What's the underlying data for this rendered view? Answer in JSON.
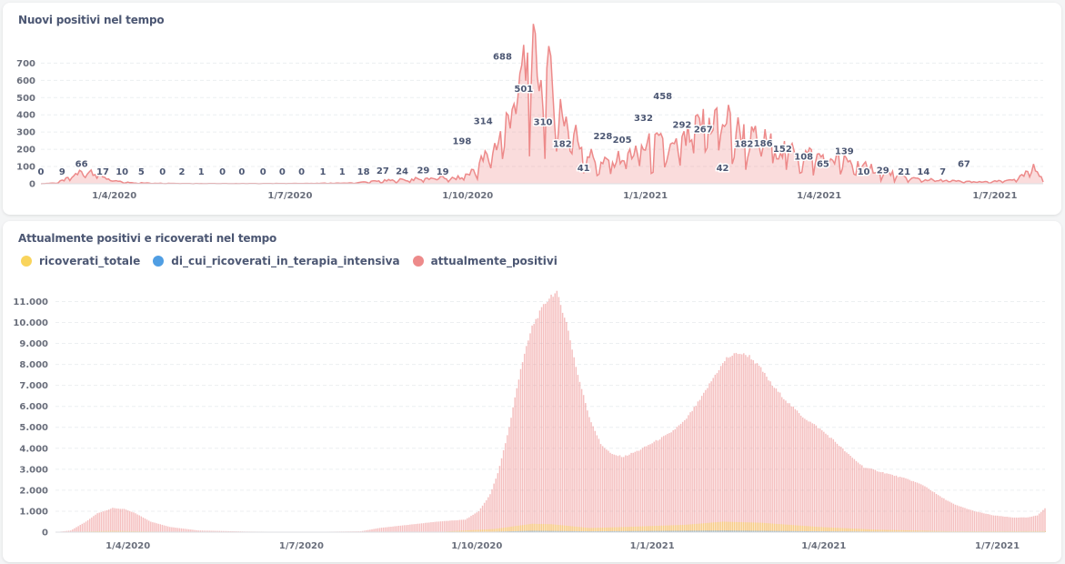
{
  "chart_data": [
    {
      "type": "area",
      "title": "Nuovi positivi nel tempo",
      "ylim": [
        0,
        760
      ],
      "yticks": [
        "0",
        "100",
        "200",
        "300",
        "400",
        "500",
        "600",
        "700"
      ],
      "ytick_values": [
        0,
        100,
        200,
        300,
        400,
        500,
        600,
        700
      ],
      "xtick_labels": [
        "1/4/2020",
        "1/7/2020",
        "1/10/2020",
        "1/1/2021",
        "1/4/2021",
        "1/7/2021"
      ],
      "xtick_days": [
        38,
        129,
        221,
        313,
        403,
        494
      ],
      "start": "2020-02-23",
      "n_days": 520,
      "color": "#ed8a8a",
      "anchors": [
        [
          0,
          0
        ],
        [
          8,
          5
        ],
        [
          14,
          30
        ],
        [
          20,
          66
        ],
        [
          26,
          80
        ],
        [
          30,
          60
        ],
        [
          36,
          20
        ],
        [
          42,
          10
        ],
        [
          48,
          6
        ],
        [
          60,
          3
        ],
        [
          80,
          1
        ],
        [
          110,
          1
        ],
        [
          140,
          2
        ],
        [
          160,
          4
        ],
        [
          170,
          12
        ],
        [
          182,
          20
        ],
        [
          195,
          28
        ],
        [
          205,
          35
        ],
        [
          215,
          30
        ],
        [
          222,
          60
        ],
        [
          228,
          130
        ],
        [
          234,
          200
        ],
        [
          240,
          320
        ],
        [
          246,
          560
        ],
        [
          250,
          680
        ],
        [
          255,
          700
        ],
        [
          260,
          680
        ],
        [
          266,
          520
        ],
        [
          272,
          380
        ],
        [
          278,
          260
        ],
        [
          284,
          170
        ],
        [
          290,
          110
        ],
        [
          296,
          140
        ],
        [
          302,
          160
        ],
        [
          308,
          190
        ],
        [
          314,
          220
        ],
        [
          320,
          230
        ],
        [
          326,
          200
        ],
        [
          332,
          230
        ],
        [
          338,
          300
        ],
        [
          344,
          360
        ],
        [
          350,
          390
        ],
        [
          356,
          360
        ],
        [
          362,
          300
        ],
        [
          368,
          260
        ],
        [
          374,
          250
        ],
        [
          380,
          220
        ],
        [
          386,
          200
        ],
        [
          392,
          180
        ],
        [
          398,
          170
        ],
        [
          404,
          160
        ],
        [
          410,
          150
        ],
        [
          416,
          130
        ],
        [
          422,
          115
        ],
        [
          428,
          100
        ],
        [
          434,
          80
        ],
        [
          440,
          60
        ],
        [
          446,
          40
        ],
        [
          452,
          30
        ],
        [
          462,
          22
        ],
        [
          472,
          16
        ],
        [
          482,
          12
        ],
        [
          490,
          10
        ],
        [
          500,
          18
        ],
        [
          508,
          40
        ],
        [
          514,
          90
        ],
        [
          519,
          40
        ]
      ],
      "labels": [
        {
          "d": 0,
          "v": 0
        },
        {
          "d": 11,
          "v": 9
        },
        {
          "d": 21,
          "v": 66
        },
        {
          "d": 32,
          "v": 17
        },
        {
          "d": 42,
          "v": 10
        },
        {
          "d": 52,
          "v": 5
        },
        {
          "d": 63,
          "v": 0
        },
        {
          "d": 73,
          "v": 2
        },
        {
          "d": 83,
          "v": 1
        },
        {
          "d": 94,
          "v": 0
        },
        {
          "d": 104,
          "v": 0
        },
        {
          "d": 115,
          "v": 0
        },
        {
          "d": 125,
          "v": 0
        },
        {
          "d": 135,
          "v": 0
        },
        {
          "d": 146,
          "v": 1
        },
        {
          "d": 156,
          "v": 1
        },
        {
          "d": 167,
          "v": 18
        },
        {
          "d": 177,
          "v": 27
        },
        {
          "d": 187,
          "v": 24
        },
        {
          "d": 198,
          "v": 29
        },
        {
          "d": 208,
          "v": 19
        },
        {
          "d": 218,
          "v": 198
        },
        {
          "d": 229,
          "v": 314
        },
        {
          "d": 239,
          "v": 688
        },
        {
          "d": 250,
          "v": 501
        },
        {
          "d": 260,
          "v": 310
        },
        {
          "d": 270,
          "v": 182
        },
        {
          "d": 281,
          "v": 41
        },
        {
          "d": 291,
          "v": 228
        },
        {
          "d": 301,
          "v": 205
        },
        {
          "d": 312,
          "v": 332
        },
        {
          "d": 322,
          "v": 458
        },
        {
          "d": 332,
          "v": 292
        },
        {
          "d": 343,
          "v": 267
        },
        {
          "d": 353,
          "v": 42
        },
        {
          "d": 364,
          "v": 182
        },
        {
          "d": 374,
          "v": 186
        },
        {
          "d": 384,
          "v": 152
        },
        {
          "d": 395,
          "v": 108
        },
        {
          "d": 405,
          "v": 65
        },
        {
          "d": 416,
          "v": 139
        },
        {
          "d": 426,
          "v": 10
        },
        {
          "d": 436,
          "v": 29
        },
        {
          "d": 447,
          "v": 21
        },
        {
          "d": 457,
          "v": 14
        },
        {
          "d": 467,
          "v": 7
        },
        {
          "d": 478,
          "v": 67
        }
      ]
    },
    {
      "type": "bar",
      "title": "Attualmente positivi e ricoverati nel tempo",
      "ylim": [
        0,
        11800
      ],
      "yticks": [
        "0",
        "1.000",
        "2.000",
        "3.000",
        "4.000",
        "5.000",
        "6.000",
        "7.000",
        "8.000",
        "9.000",
        "10.000",
        "11.000"
      ],
      "ytick_values": [
        0,
        1000,
        2000,
        3000,
        4000,
        5000,
        6000,
        7000,
        8000,
        9000,
        10000,
        11000
      ],
      "xtick_labels": [
        "1/4/2020",
        "1/7/2020",
        "1/10/2020",
        "1/1/2021",
        "1/4/2021",
        "1/7/2021"
      ],
      "xtick_days": [
        38,
        129,
        221,
        313,
        403,
        494
      ],
      "start": "2020-02-23",
      "n_days": 520,
      "series": [
        {
          "name": "ricoverati_totale",
          "color": "#f9d45c",
          "anchors": [
            [
              0,
              0
            ],
            [
              30,
              60
            ],
            [
              50,
              30
            ],
            [
              70,
              10
            ],
            [
              200,
              10
            ],
            [
              230,
              150
            ],
            [
              250,
              400
            ],
            [
              260,
              380
            ],
            [
              280,
              200
            ],
            [
              300,
              250
            ],
            [
              330,
              350
            ],
            [
              350,
              500
            ],
            [
              370,
              450
            ],
            [
              400,
              250
            ],
            [
              430,
              120
            ],
            [
              470,
              40
            ],
            [
              519,
              50
            ]
          ]
        },
        {
          "name": "di_cui_ricoverati_in_terapia_intensiva",
          "color": "#509ee3",
          "anchors": [
            [
              0,
              0
            ],
            [
              30,
              15
            ],
            [
              60,
              3
            ],
            [
              220,
              5
            ],
            [
              250,
              60
            ],
            [
              280,
              40
            ],
            [
              350,
              70
            ],
            [
              400,
              40
            ],
            [
              470,
              8
            ],
            [
              519,
              8
            ]
          ]
        },
        {
          "name": "attualmente_positivi",
          "color": "#ed8a8a",
          "anchors": [
            [
              0,
              0
            ],
            [
              8,
              80
            ],
            [
              16,
              500
            ],
            [
              22,
              900
            ],
            [
              30,
              1150
            ],
            [
              36,
              1100
            ],
            [
              42,
              900
            ],
            [
              50,
              500
            ],
            [
              60,
              250
            ],
            [
              75,
              80
            ],
            [
              100,
              30
            ],
            [
              130,
              10
            ],
            [
              160,
              40
            ],
            [
              170,
              200
            ],
            [
              185,
              350
            ],
            [
              200,
              500
            ],
            [
              215,
              600
            ],
            [
              222,
              1000
            ],
            [
              228,
              1800
            ],
            [
              232,
              2800
            ],
            [
              238,
              5000
            ],
            [
              244,
              7800
            ],
            [
              250,
              9800
            ],
            [
              256,
              10800
            ],
            [
              260,
              11300
            ],
            [
              263,
              11400
            ],
            [
              268,
              10000
            ],
            [
              274,
              7500
            ],
            [
              280,
              5500
            ],
            [
              286,
              4200
            ],
            [
              292,
              3700
            ],
            [
              298,
              3600
            ],
            [
              306,
              3900
            ],
            [
              314,
              4300
            ],
            [
              322,
              4700
            ],
            [
              330,
              5300
            ],
            [
              338,
              6300
            ],
            [
              346,
              7500
            ],
            [
              352,
              8300
            ],
            [
              358,
              8550
            ],
            [
              364,
              8400
            ],
            [
              370,
              7800
            ],
            [
              376,
              7000
            ],
            [
              384,
              6200
            ],
            [
              392,
              5500
            ],
            [
              400,
              5000
            ],
            [
              408,
              4400
            ],
            [
              416,
              3700
            ],
            [
              424,
              3100
            ],
            [
              432,
              2900
            ],
            [
              440,
              2700
            ],
            [
              448,
              2500
            ],
            [
              456,
              2200
            ],
            [
              464,
              1700
            ],
            [
              472,
              1300
            ],
            [
              482,
              1000
            ],
            [
              492,
              800
            ],
            [
              502,
              700
            ],
            [
              510,
              700
            ],
            [
              515,
              800
            ],
            [
              519,
              1150
            ]
          ]
        }
      ]
    }
  ]
}
